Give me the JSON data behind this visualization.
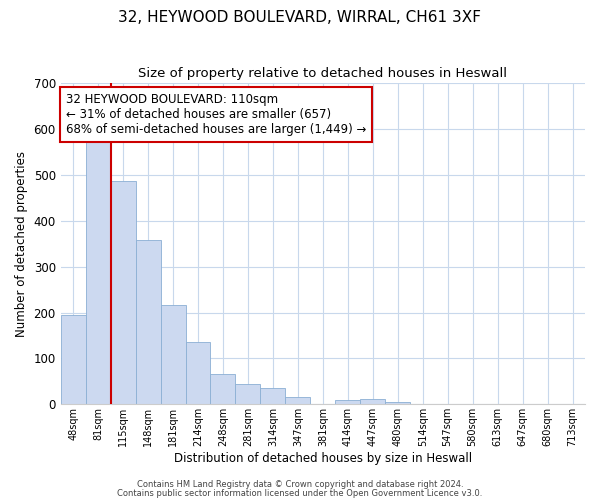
{
  "title": "32, HEYWOOD BOULEVARD, WIRRAL, CH61 3XF",
  "subtitle": "Size of property relative to detached houses in Heswall",
  "xlabel": "Distribution of detached houses by size in Heswall",
  "ylabel": "Number of detached properties",
  "bar_labels": [
    "48sqm",
    "81sqm",
    "115sqm",
    "148sqm",
    "181sqm",
    "214sqm",
    "248sqm",
    "281sqm",
    "314sqm",
    "347sqm",
    "381sqm",
    "414sqm",
    "447sqm",
    "480sqm",
    "514sqm",
    "547sqm",
    "580sqm",
    "613sqm",
    "647sqm",
    "680sqm",
    "713sqm"
  ],
  "bar_heights": [
    195,
    578,
    487,
    357,
    216,
    135,
    65,
    45,
    35,
    16,
    0,
    10,
    12,
    5,
    0,
    0,
    0,
    0,
    0,
    0,
    0
  ],
  "bar_color": "#ccd9f0",
  "bar_edge_color": "#8bafd4",
  "vline_x_index": 1,
  "vline_color": "#cc0000",
  "ylim": [
    0,
    700
  ],
  "yticks": [
    0,
    100,
    200,
    300,
    400,
    500,
    600,
    700
  ],
  "annotation_text": "32 HEYWOOD BOULEVARD: 110sqm\n← 31% of detached houses are smaller (657)\n68% of semi-detached houses are larger (1,449) →",
  "annotation_box_color": "#ffffff",
  "annotation_box_edge": "#cc0000",
  "footer1": "Contains HM Land Registry data © Crown copyright and database right 2024.",
  "footer2": "Contains public sector information licensed under the Open Government Licence v3.0.",
  "background_color": "#ffffff",
  "grid_color": "#c8d8ec"
}
